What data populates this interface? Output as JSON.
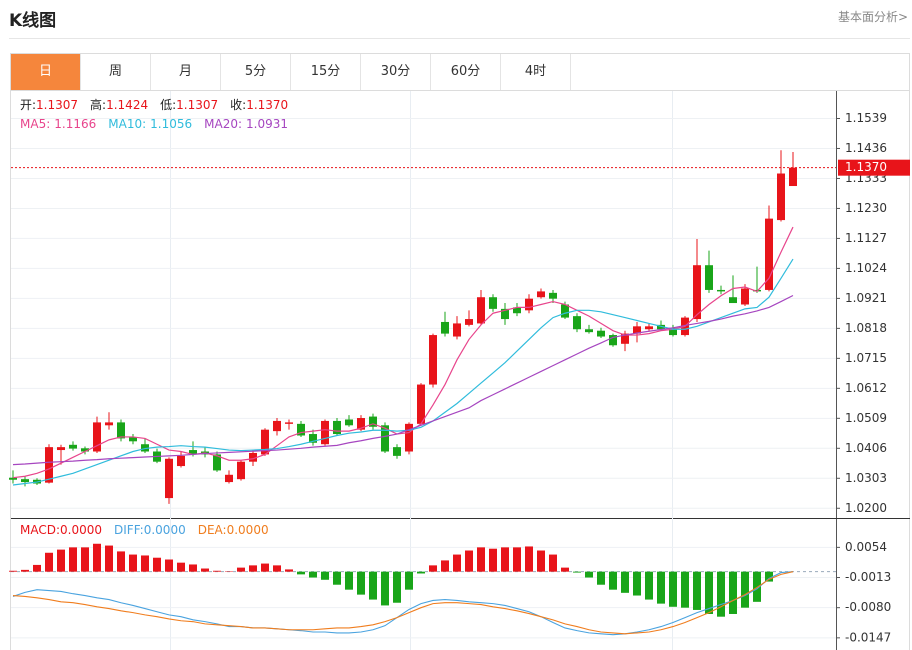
{
  "header": {
    "title": "K线图",
    "link": "基本面分析>"
  },
  "tabs": [
    "日",
    "周",
    "月",
    "5分",
    "15分",
    "30分",
    "60分",
    "4时"
  ],
  "active_tab": 0,
  "chart_data": [
    {
      "type": "candlestick",
      "ylim": [
        1.017,
        1.163
      ],
      "yticks": [
        {
          "value": 1.02,
          "label": "1.0200"
        },
        1.0303,
        1.0406,
        1.0509,
        1.0612,
        1.0715,
        1.0818,
        1.0921,
        1.1024,
        1.1127,
        {
          "value": 1.123,
          "label": "1.1230"
        },
        1.1333,
        1.1436,
        1.1539
      ],
      "grid": true,
      "up_color": "#e8141a",
      "down_color": "#19a519",
      "info": [
        {
          "label": "开:",
          "value": "1.1307"
        },
        {
          "label": "高:",
          "value": "1.1424"
        },
        {
          "label": "低:",
          "value": "1.1307"
        },
        {
          "label": "收:",
          "value": "1.1370"
        }
      ],
      "current_price": {
        "value": 1.137,
        "label": "1.1370"
      },
      "open": [
        1.0305,
        1.03,
        1.0298,
        1.0288,
        1.04,
        1.0418,
        1.0406,
        1.0395,
        1.0485,
        1.0495,
        1.0443,
        1.042,
        1.0395,
        1.0235,
        1.0345,
        1.04,
        1.0395,
        1.0385,
        1.029,
        1.03,
        1.036,
        1.0385,
        1.0465,
        1.049,
        1.049,
        1.0455,
        1.042,
        1.05,
        1.0505,
        1.047,
        1.0515,
        1.0485,
        1.041,
        1.0395,
        1.049,
        1.0625,
        1.084,
        1.079,
        1.083,
        1.0835,
        1.0925,
        1.0885,
        1.089,
        1.088,
        1.0925,
        1.094,
        1.09,
        1.086,
        1.0815,
        1.081,
        1.0795,
        1.0765,
        1.08,
        1.0815,
        1.083,
        1.082,
        1.0795,
        1.085,
        1.1035,
        1.095,
        1.0925,
        1.09,
        1.095,
        1.095,
        1.119,
        1.1307
      ],
      "high": [
        1.033,
        1.031,
        1.0303,
        1.042,
        1.0418,
        1.043,
        1.0412,
        1.0515,
        1.053,
        1.0505,
        1.0455,
        1.044,
        1.0405,
        1.0375,
        1.0395,
        1.043,
        1.041,
        1.0395,
        1.033,
        1.0365,
        1.04,
        1.0475,
        1.051,
        1.0505,
        1.05,
        1.047,
        1.0505,
        1.051,
        1.052,
        1.052,
        1.0525,
        1.0495,
        1.042,
        1.0495,
        1.063,
        1.08,
        1.0875,
        1.086,
        1.088,
        1.095,
        1.0935,
        1.0905,
        1.0905,
        1.0935,
        1.0955,
        1.095,
        1.091,
        1.087,
        1.083,
        1.082,
        1.08,
        1.081,
        1.084,
        1.0835,
        1.0845,
        1.083,
        1.086,
        1.1125,
        1.1085,
        1.0965,
        1.1,
        1.097,
        1.103,
        1.124,
        1.143,
        1.1424
      ],
      "low": [
        1.0285,
        1.0275,
        1.028,
        1.0285,
        1.035,
        1.0398,
        1.0385,
        1.039,
        1.047,
        1.043,
        1.042,
        1.039,
        1.0355,
        1.0215,
        1.034,
        1.0378,
        1.0375,
        1.0325,
        1.0285,
        1.0295,
        1.0345,
        1.038,
        1.045,
        1.047,
        1.0445,
        1.0415,
        1.0415,
        1.045,
        1.048,
        1.0465,
        1.047,
        1.039,
        1.037,
        1.0385,
        1.0485,
        1.0615,
        1.079,
        1.078,
        1.0825,
        1.083,
        1.0875,
        1.083,
        1.086,
        1.087,
        1.092,
        1.0905,
        1.085,
        1.0805,
        1.08,
        1.0785,
        1.0755,
        1.074,
        1.077,
        1.081,
        1.081,
        1.079,
        1.079,
        1.084,
        1.094,
        1.0935,
        1.0905,
        1.0895,
        1.094,
        1.0945,
        1.1185,
        1.1307
      ],
      "close": [
        1.0298,
        1.029,
        1.0285,
        1.041,
        1.041,
        1.0405,
        1.0395,
        1.0495,
        1.0495,
        1.044,
        1.043,
        1.0395,
        1.036,
        1.037,
        1.038,
        1.0385,
        1.0385,
        1.033,
        1.0315,
        1.036,
        1.039,
        1.047,
        1.05,
        1.0495,
        1.045,
        1.0425,
        1.05,
        1.0455,
        1.0485,
        1.051,
        1.048,
        1.0395,
        1.038,
        1.049,
        1.0625,
        1.0795,
        1.08,
        1.0835,
        1.085,
        1.0925,
        1.0885,
        1.085,
        1.087,
        1.092,
        1.0945,
        1.092,
        1.0855,
        1.0815,
        1.0805,
        1.079,
        1.076,
        1.08,
        1.0825,
        1.0825,
        1.0815,
        1.0795,
        1.0855,
        1.1035,
        1.095,
        1.0945,
        1.0905,
        1.0955,
        1.0945,
        1.1195,
        1.135,
        1.137
      ],
      "series": [
        {
          "name": "MA5:",
          "legend_value": "1.1166",
          "color": "#e8458c",
          "values": [
            1.0305,
            1.031,
            1.032,
            1.0335,
            1.0355,
            1.0375,
            1.0395,
            1.0415,
            1.0435,
            1.0445,
            1.0445,
            1.044,
            1.042,
            1.04,
            1.0395,
            1.0385,
            1.039,
            1.038,
            1.0365,
            1.0365,
            1.037,
            1.0385,
            1.0415,
            1.0445,
            1.046,
            1.0465,
            1.047,
            1.0465,
            1.0465,
            1.0475,
            1.049,
            1.0475,
            1.0455,
            1.046,
            1.049,
            1.0555,
            1.0625,
            1.071,
            1.078,
            1.083,
            1.087,
            1.088,
            1.089,
            1.089,
            1.09,
            1.091,
            1.09,
            1.088,
            1.086,
            1.0835,
            1.081,
            1.0795,
            1.0795,
            1.08,
            1.081,
            1.0815,
            1.0825,
            1.0865,
            1.09,
            1.093,
            1.0955,
            1.096,
            1.0945,
            1.099,
            1.108,
            1.1166
          ]
        },
        {
          "name": "MA10:",
          "legend_value": "1.1056",
          "color": "#30bcdc",
          "values": [
            1.028,
            1.0285,
            1.029,
            1.03,
            1.031,
            1.032,
            1.0335,
            1.035,
            1.0365,
            1.038,
            1.0395,
            1.0405,
            1.041,
            1.0412,
            1.0415,
            1.0412,
            1.041,
            1.0405,
            1.04,
            1.0398,
            1.04,
            1.0402,
            1.0405,
            1.0412,
            1.042,
            1.043,
            1.044,
            1.045,
            1.0458,
            1.0462,
            1.0468,
            1.0468,
            1.0465,
            1.0468,
            1.0478,
            1.05,
            1.053,
            1.056,
            1.0595,
            1.063,
            1.0665,
            1.07,
            1.074,
            1.078,
            1.082,
            1.0855,
            1.087,
            1.088,
            1.088,
            1.0875,
            1.0865,
            1.0855,
            1.0845,
            1.0835,
            1.0825,
            1.0815,
            1.0815,
            1.0825,
            1.084,
            1.0855,
            1.087,
            1.0885,
            1.089,
            1.0925,
            1.099,
            1.1056
          ]
        },
        {
          "name": "MA20:",
          "legend_value": "1.0931",
          "color": "#a646c0",
          "values": [
            1.035,
            1.0352,
            1.0355,
            1.0358,
            1.036,
            1.0362,
            1.0365,
            1.0367,
            1.037,
            1.0372,
            1.0374,
            1.0376,
            1.0378,
            1.038,
            1.0382,
            1.0385,
            1.0388,
            1.039,
            1.0392,
            1.0394,
            1.0396,
            1.0398,
            1.04,
            1.0403,
            1.0406,
            1.041,
            1.0413,
            1.0416,
            1.0425,
            1.0432,
            1.044,
            1.0447,
            1.0455,
            1.047,
            1.0485,
            1.05,
            1.0515,
            1.053,
            1.0545,
            1.057,
            1.059,
            1.061,
            1.063,
            1.065,
            1.067,
            1.069,
            1.071,
            1.073,
            1.075,
            1.0768,
            1.0787,
            1.0795,
            1.0802,
            1.0808,
            1.0814,
            1.082,
            1.0828,
            1.0835,
            1.0842,
            1.085,
            1.086,
            1.0868,
            1.0878,
            1.089,
            1.091,
            1.0931
          ]
        }
      ]
    },
    {
      "type": "macd",
      "ylim": [
        -0.0174,
        0.0117
      ],
      "yticks": [
        0.0054,
        -0.0013,
        {
          "value": -0.008,
          "label": "-0.0080"
        },
        -0.0147
      ],
      "grid": true,
      "histogram": {
        "name": "MACD:",
        "legend_value": "0.0000",
        "color": "#e8141a",
        "up_color": "#e8141a",
        "down_color": "#19a519",
        "values": [
          0.0002,
          0.0004,
          0.0015,
          0.0042,
          0.0049,
          0.0054,
          0.0054,
          0.0062,
          0.0058,
          0.0045,
          0.0038,
          0.0036,
          0.0031,
          0.0027,
          0.002,
          0.0016,
          0.0007,
          0.0002,
          0.0001,
          0.0009,
          0.0014,
          0.0018,
          0.0014,
          0.0005,
          -0.0006,
          -0.0013,
          -0.0018,
          -0.0029,
          -0.004,
          -0.0051,
          -0.0062,
          -0.0075,
          -0.0069,
          -0.004,
          -0.0004,
          0.0014,
          0.0025,
          0.0038,
          0.0047,
          0.0054,
          0.0051,
          0.0054,
          0.0054,
          0.0056,
          0.0047,
          0.0038,
          0.0009,
          -0.0002,
          -0.0013,
          -0.0029,
          -0.004,
          -0.0047,
          -0.0053,
          -0.0062,
          -0.0071,
          -0.0078,
          -0.008,
          -0.0085,
          -0.0094,
          -0.01,
          -0.0094,
          -0.008,
          -0.0067,
          -0.0022,
          null,
          null
        ]
      },
      "series": [
        {
          "name": "DIFF:",
          "legend_value": "0.0000",
          "color": "#4aa3df",
          "values": [
            -0.0055,
            -0.0046,
            -0.004,
            -0.0042,
            -0.0044,
            -0.0049,
            -0.0053,
            -0.0058,
            -0.0062,
            -0.0069,
            -0.0075,
            -0.0082,
            -0.0089,
            -0.0096,
            -0.01,
            -0.0107,
            -0.0111,
            -0.0116,
            -0.0122,
            -0.0122,
            -0.0125,
            -0.0125,
            -0.0127,
            -0.0129,
            -0.0131,
            -0.0134,
            -0.0134,
            -0.0136,
            -0.0136,
            -0.0134,
            -0.0129,
            -0.012,
            -0.0102,
            -0.0084,
            -0.0071,
            -0.0064,
            -0.0062,
            -0.0064,
            -0.0067,
            -0.0069,
            -0.0071,
            -0.0075,
            -0.0082,
            -0.0089,
            -0.01,
            -0.0113,
            -0.0125,
            -0.0131,
            -0.0136,
            -0.0138,
            -0.014,
            -0.0138,
            -0.0134,
            -0.0129,
            -0.0122,
            -0.0113,
            -0.0102,
            -0.0091,
            -0.0082,
            -0.0073,
            -0.0064,
            -0.0053,
            -0.0038,
            -0.0015,
            -0.0002,
            0
          ]
        },
        {
          "name": "DEA:",
          "legend_value": "0.0000",
          "color": "#f07d1e",
          "values": [
            -0.0053,
            -0.0055,
            -0.0058,
            -0.0062,
            -0.0067,
            -0.0069,
            -0.0073,
            -0.0078,
            -0.0082,
            -0.0087,
            -0.0091,
            -0.0096,
            -0.01,
            -0.0105,
            -0.0109,
            -0.0111,
            -0.0116,
            -0.0118,
            -0.012,
            -0.0122,
            -0.0125,
            -0.0125,
            -0.0127,
            -0.0129,
            -0.0129,
            -0.0129,
            -0.0127,
            -0.0125,
            -0.0125,
            -0.0122,
            -0.0118,
            -0.0111,
            -0.0102,
            -0.0091,
            -0.008,
            -0.0071,
            -0.0069,
            -0.0069,
            -0.0071,
            -0.0073,
            -0.0078,
            -0.0082,
            -0.0087,
            -0.0093,
            -0.01,
            -0.0107,
            -0.0116,
            -0.0122,
            -0.0129,
            -0.0134,
            -0.0136,
            -0.0138,
            -0.0136,
            -0.0134,
            -0.0129,
            -0.0122,
            -0.0113,
            -0.0102,
            -0.0091,
            -0.0078,
            -0.0064,
            -0.0051,
            -0.0035,
            -0.0017,
            -0.0006,
            0
          ]
        }
      ]
    }
  ]
}
